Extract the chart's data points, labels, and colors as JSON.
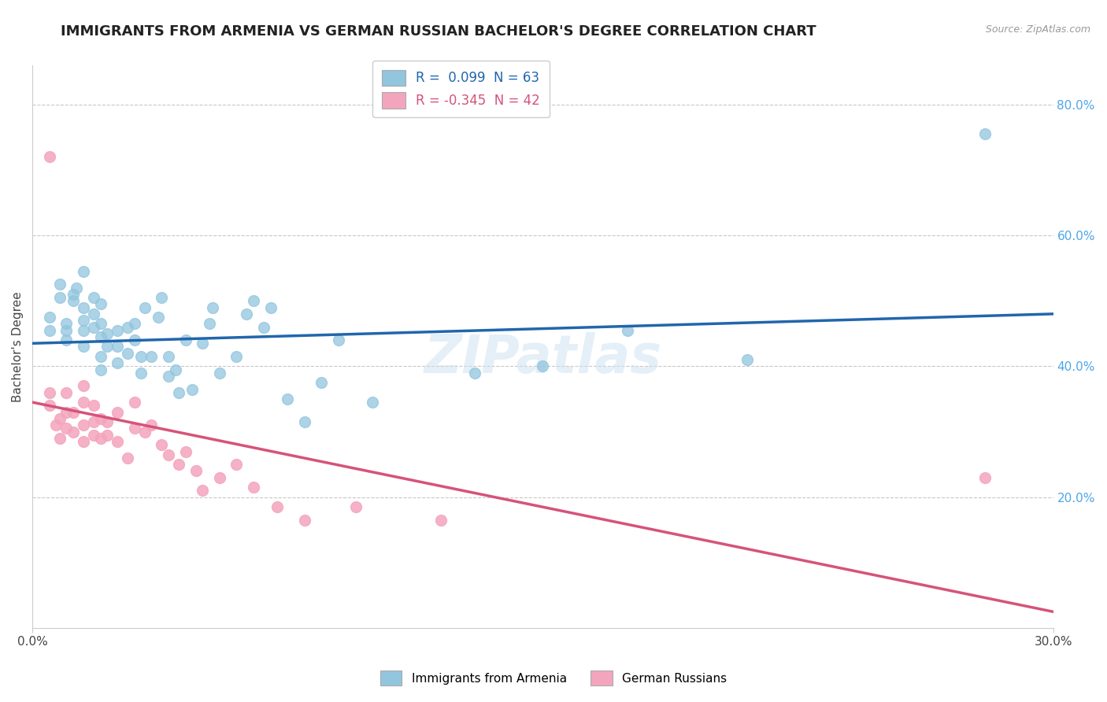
{
  "title": "IMMIGRANTS FROM ARMENIA VS GERMAN RUSSIAN BACHELOR'S DEGREE CORRELATION CHART",
  "source": "Source: ZipAtlas.com",
  "ylabel": "Bachelor's Degree",
  "right_yticks": [
    "80.0%",
    "60.0%",
    "40.0%",
    "20.0%"
  ],
  "right_ytick_vals": [
    0.8,
    0.6,
    0.4,
    0.2
  ],
  "xlim": [
    0.0,
    0.3
  ],
  "ylim": [
    0.0,
    0.86
  ],
  "legend1_r": " 0.099",
  "legend1_n": "63",
  "legend2_r": "-0.345",
  "legend2_n": "42",
  "blue_color": "#92c5de",
  "pink_color": "#f4a5be",
  "blue_line_color": "#2166ac",
  "pink_line_color": "#d6537a",
  "watermark": "ZIPatlas",
  "blue_scatter_x": [
    0.005,
    0.005,
    0.008,
    0.008,
    0.01,
    0.01,
    0.01,
    0.012,
    0.012,
    0.013,
    0.015,
    0.015,
    0.015,
    0.015,
    0.015,
    0.018,
    0.018,
    0.018,
    0.02,
    0.02,
    0.02,
    0.02,
    0.02,
    0.022,
    0.022,
    0.025,
    0.025,
    0.025,
    0.028,
    0.028,
    0.03,
    0.03,
    0.032,
    0.032,
    0.033,
    0.035,
    0.037,
    0.038,
    0.04,
    0.04,
    0.042,
    0.043,
    0.045,
    0.047,
    0.05,
    0.052,
    0.053,
    0.055,
    0.06,
    0.063,
    0.065,
    0.068,
    0.07,
    0.075,
    0.08,
    0.085,
    0.09,
    0.1,
    0.13,
    0.15,
    0.175,
    0.21,
    0.28
  ],
  "blue_scatter_y": [
    0.455,
    0.475,
    0.505,
    0.525,
    0.44,
    0.455,
    0.465,
    0.5,
    0.51,
    0.52,
    0.43,
    0.455,
    0.47,
    0.49,
    0.545,
    0.46,
    0.48,
    0.505,
    0.395,
    0.415,
    0.445,
    0.465,
    0.495,
    0.43,
    0.45,
    0.405,
    0.43,
    0.455,
    0.42,
    0.46,
    0.44,
    0.465,
    0.39,
    0.415,
    0.49,
    0.415,
    0.475,
    0.505,
    0.385,
    0.415,
    0.395,
    0.36,
    0.44,
    0.365,
    0.435,
    0.465,
    0.49,
    0.39,
    0.415,
    0.48,
    0.5,
    0.46,
    0.49,
    0.35,
    0.315,
    0.375,
    0.44,
    0.345,
    0.39,
    0.4,
    0.455,
    0.41,
    0.755
  ],
  "pink_scatter_x": [
    0.005,
    0.005,
    0.007,
    0.008,
    0.008,
    0.01,
    0.01,
    0.01,
    0.012,
    0.012,
    0.015,
    0.015,
    0.015,
    0.015,
    0.018,
    0.018,
    0.018,
    0.02,
    0.02,
    0.022,
    0.022,
    0.025,
    0.025,
    0.028,
    0.03,
    0.03,
    0.033,
    0.035,
    0.038,
    0.04,
    0.043,
    0.045,
    0.048,
    0.05,
    0.055,
    0.06,
    0.065,
    0.072,
    0.08,
    0.095,
    0.12,
    0.28
  ],
  "pink_scatter_y": [
    0.34,
    0.36,
    0.31,
    0.29,
    0.32,
    0.305,
    0.33,
    0.36,
    0.3,
    0.33,
    0.285,
    0.31,
    0.345,
    0.37,
    0.295,
    0.315,
    0.34,
    0.29,
    0.32,
    0.295,
    0.315,
    0.285,
    0.33,
    0.26,
    0.305,
    0.345,
    0.3,
    0.31,
    0.28,
    0.265,
    0.25,
    0.27,
    0.24,
    0.21,
    0.23,
    0.25,
    0.215,
    0.185,
    0.165,
    0.185,
    0.165,
    0.23
  ],
  "pink_outlier_x": [
    0.005
  ],
  "pink_outlier_y": [
    0.72
  ],
  "blue_trend_x": [
    0.0,
    0.3
  ],
  "blue_trend_y": [
    0.435,
    0.48
  ],
  "pink_trend_x": [
    0.0,
    0.3
  ],
  "pink_trend_y": [
    0.345,
    0.025
  ],
  "grid_color": "#c8c8c8",
  "title_fontsize": 13,
  "axis_label_fontsize": 11,
  "tick_fontsize": 11
}
